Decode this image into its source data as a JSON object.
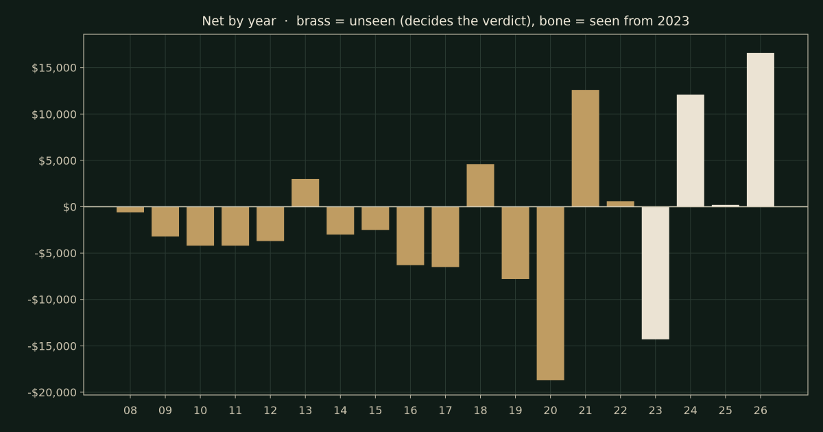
{
  "chart_data": {
    "type": "bar",
    "title": "Net by year  ·  brass = unseen (decides the verdict), bone = seen from 2023",
    "xlabel": "",
    "ylabel": "",
    "categories": [
      "08",
      "09",
      "10",
      "11",
      "12",
      "13",
      "14",
      "15",
      "16",
      "17",
      "18",
      "19",
      "20",
      "21",
      "22",
      "23",
      "24",
      "25",
      "26"
    ],
    "values": [
      -600,
      -3200,
      -4200,
      -4200,
      -3700,
      3000,
      -3000,
      -2500,
      -6300,
      -6500,
      4600,
      -7800,
      -18700,
      12600,
      600,
      -14300,
      12100,
      200,
      16600
    ],
    "bar_group": [
      "unseen",
      "unseen",
      "unseen",
      "unseen",
      "unseen",
      "unseen",
      "unseen",
      "unseen",
      "unseen",
      "unseen",
      "unseen",
      "unseen",
      "unseen",
      "unseen",
      "unseen",
      "seen",
      "seen",
      "seen",
      "seen"
    ],
    "ylim": [
      -20300,
      18600
    ],
    "yticks": [
      15000,
      10000,
      5000,
      0,
      -5000,
      -10000,
      -15000,
      -20000
    ],
    "ytick_labels": [
      "$15,000",
      "$10,000",
      "$5,000",
      "$0",
      "-$5,000",
      "-$10,000",
      "-$15,000",
      "-$20,000"
    ],
    "grid": true,
    "colors": {
      "unseen": "#bf9c62",
      "seen": "#ebe3d3",
      "background": "#101c17",
      "frame": "#b9b4a1",
      "grid": "#2a3a32",
      "zero_line": "#d0cab6",
      "text": "#c9c2ad",
      "title": "#ece6d6"
    }
  }
}
